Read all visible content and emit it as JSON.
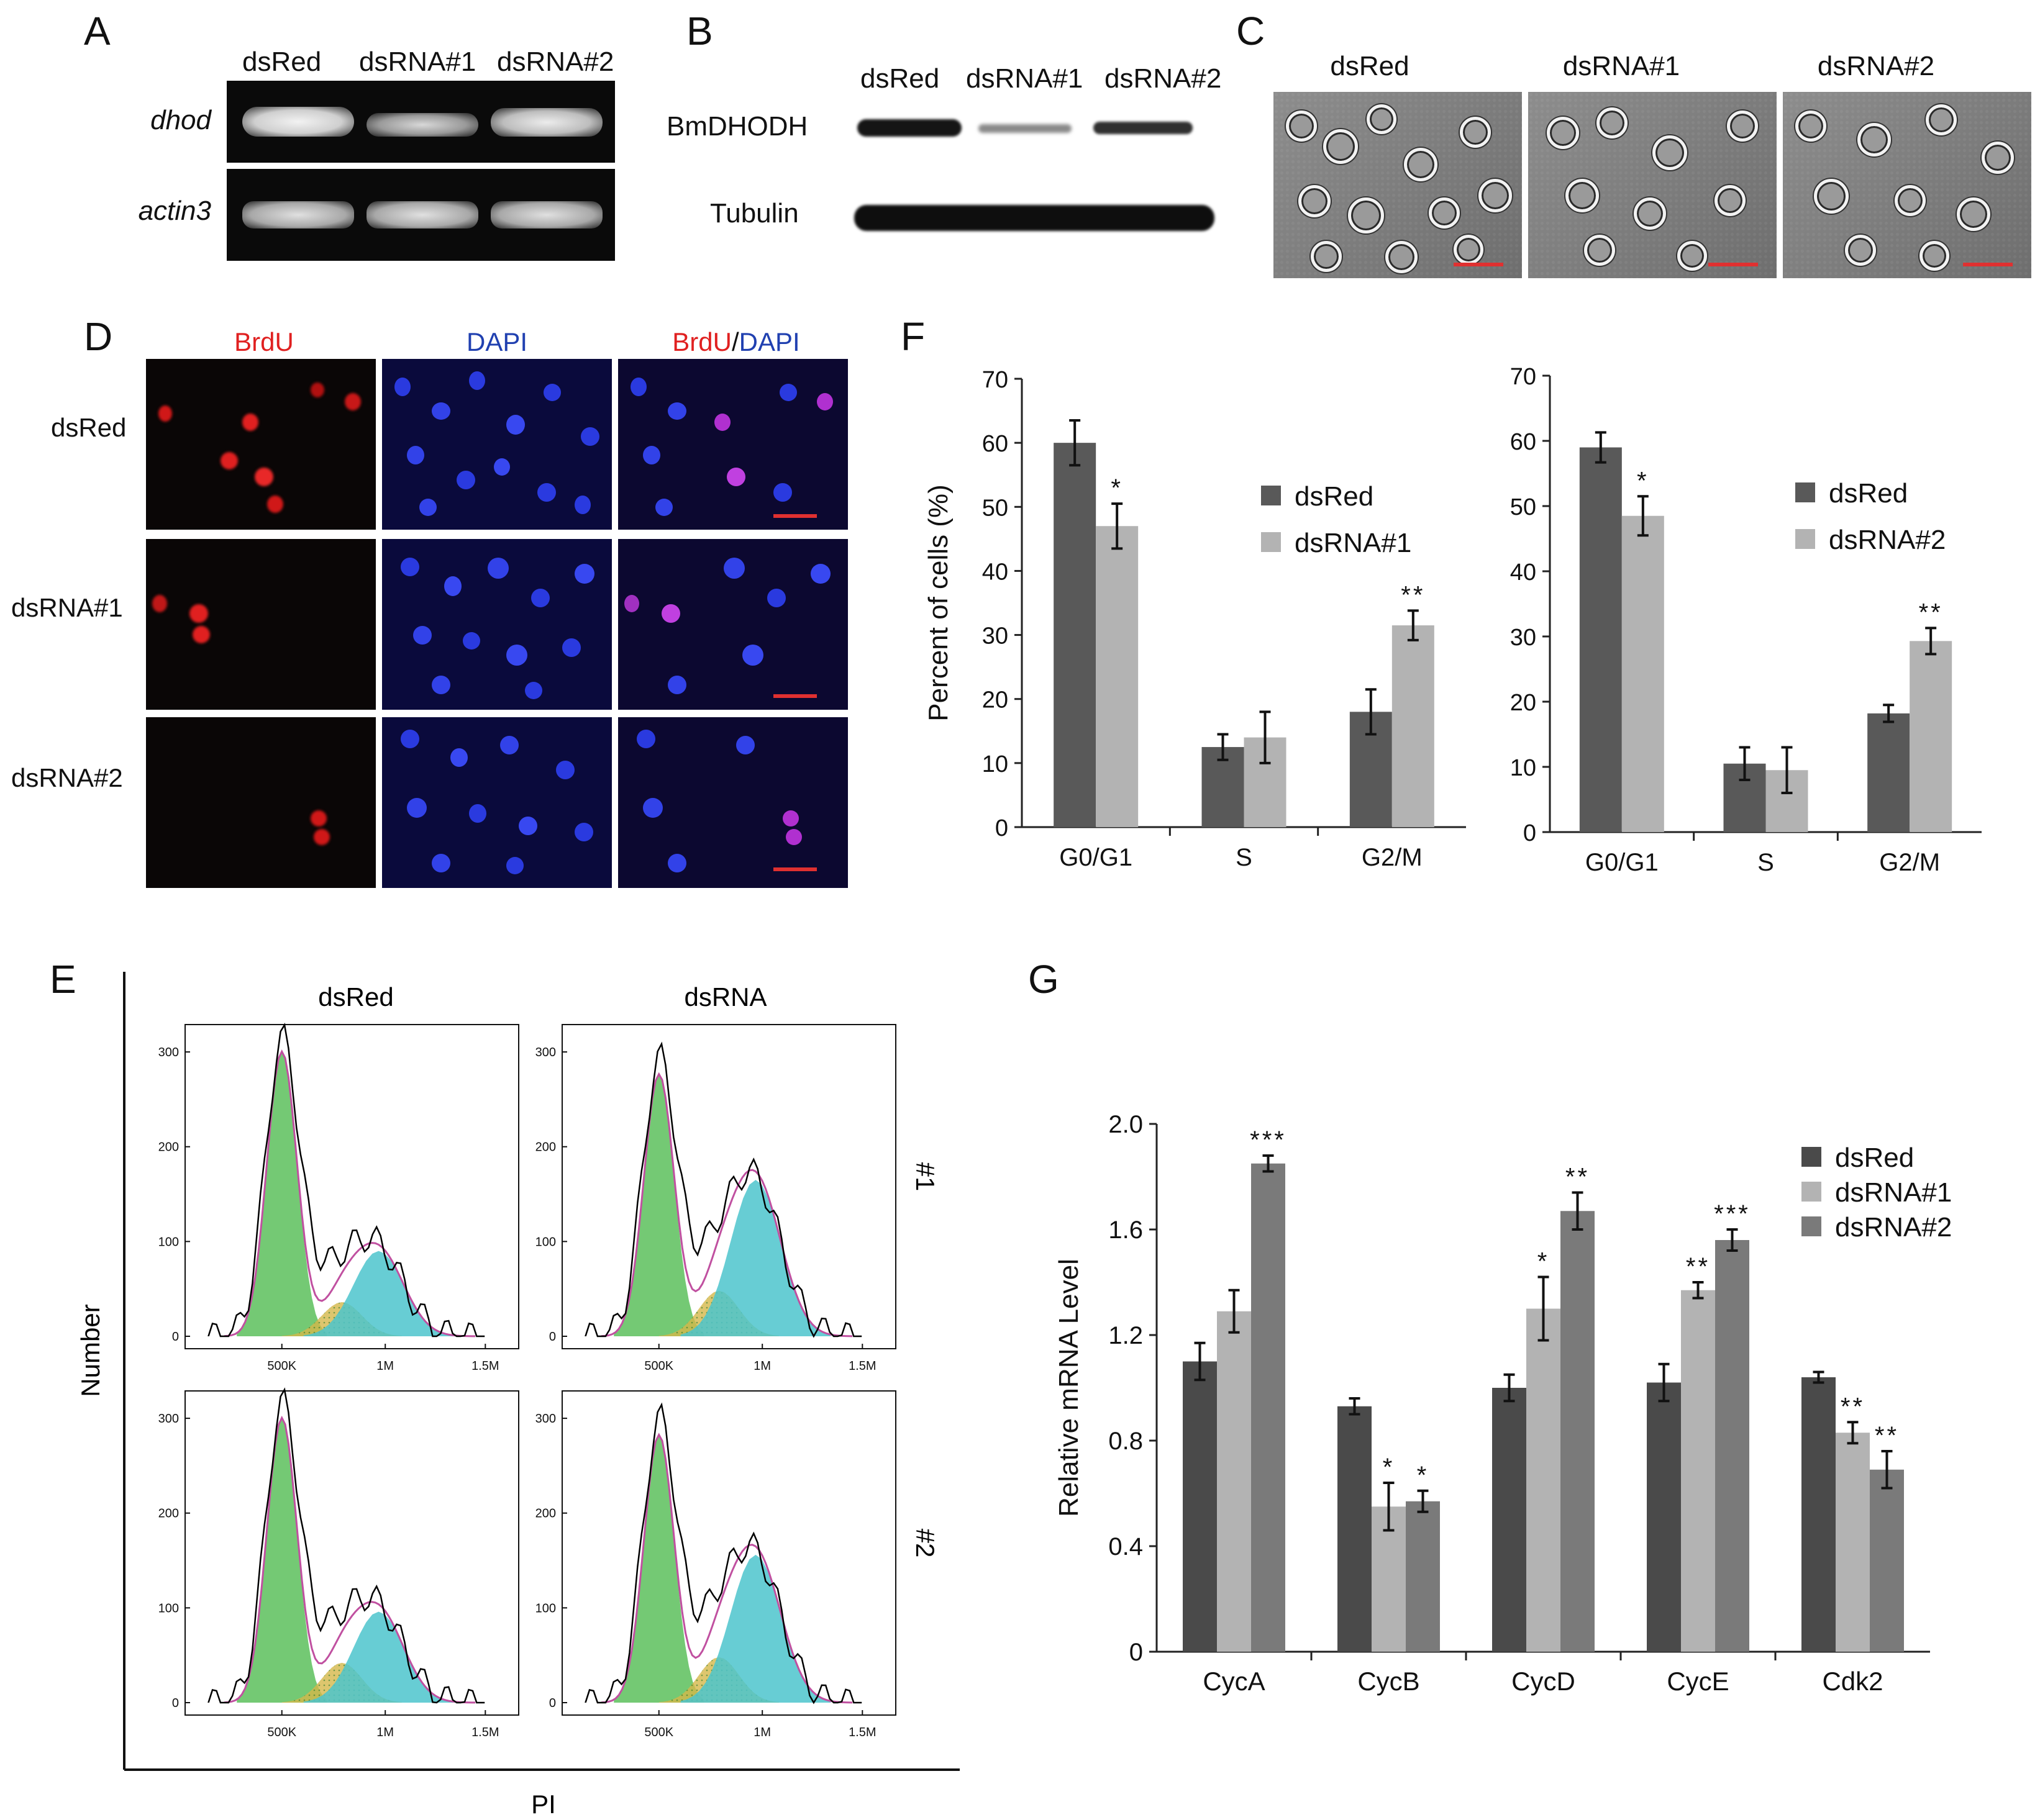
{
  "panels": {
    "A": "A",
    "B": "B",
    "C": "C",
    "D": "D",
    "E": "E",
    "F": "F",
    "G": "G"
  },
  "panelA": {
    "columns": [
      "dsRed",
      "dsRNA#1",
      "dsRNA#2"
    ],
    "rows": [
      "dhod",
      "actin3"
    ]
  },
  "panelB": {
    "columns": [
      "dsRed",
      "dsRNA#1",
      "dsRNA#2"
    ],
    "rows": [
      "BmDHODH",
      "Tubulin"
    ]
  },
  "panelC": {
    "columns": [
      "dsRed",
      "dsRNA#1",
      "dsRNA#2"
    ]
  },
  "panelD": {
    "columns": {
      "brdu": "BrdU",
      "dapi": "DAPI",
      "merge_brdu": "BrdU",
      "merge_sep": "/",
      "merge_dapi": "DAPI"
    },
    "rows": [
      "dsRed",
      "dsRNA#1",
      "dsRNA#2"
    ],
    "colors": {
      "brdu": "#e02020",
      "dapi": "#2040b0"
    }
  },
  "panelE": {
    "columns": [
      "dsRed",
      "dsRNA"
    ],
    "rows": [
      "#1",
      "#2"
    ],
    "ylabel": "Number",
    "xlabel": "PI",
    "yticks": [
      "300",
      "200",
      "100",
      "0"
    ],
    "xticks": [
      "500K",
      "1M",
      "1.5M"
    ],
    "colors": {
      "g1": "#5cbf5c",
      "s": "#d4b84a",
      "g2": "#4cc4cc",
      "fit": "#c050a0",
      "data": "#000000"
    }
  },
  "chart_data": [
    {
      "type": "bar",
      "title": "",
      "ylabel": "Percent of cells (%)",
      "xlabel": "",
      "ylim": [
        0,
        70
      ],
      "yticks": [
        "0",
        "10",
        "20",
        "30",
        "40",
        "50",
        "60",
        "70"
      ],
      "categories": [
        "G0/G1",
        "S",
        "G2/M"
      ],
      "series": [
        {
          "name": "dsRed",
          "values": [
            60,
            12.5,
            18
          ],
          "errors": [
            3.5,
            2,
            3.5
          ],
          "color": "#595959"
        },
        {
          "name": "dsRNA#1",
          "values": [
            47,
            14,
            31.5
          ],
          "errors": [
            3.5,
            4,
            2.3
          ],
          "color": "#b3b3b3"
        }
      ],
      "significance": [
        "*",
        "",
        "**"
      ],
      "legend_position": "top-right"
    },
    {
      "type": "bar",
      "title": "",
      "ylabel": "",
      "xlabel": "",
      "ylim": [
        0,
        70
      ],
      "yticks": [
        "0",
        "10",
        "20",
        "30",
        "40",
        "50",
        "60",
        "70"
      ],
      "categories": [
        "G0/G1",
        "S",
        "G2/M"
      ],
      "series": [
        {
          "name": "dsRed",
          "values": [
            59,
            10.5,
            18.2
          ],
          "errors": [
            2.3,
            2.5,
            1.3
          ],
          "color": "#595959"
        },
        {
          "name": "dsRNA#2",
          "values": [
            48.5,
            9.5,
            29.3
          ],
          "errors": [
            3,
            3.5,
            2
          ],
          "color": "#b3b3b3"
        }
      ],
      "significance": [
        "*",
        "",
        "**"
      ],
      "legend_position": "top-right"
    },
    {
      "type": "bar",
      "title": "",
      "ylabel": "Relative mRNA Level",
      "xlabel": "",
      "ylim": [
        0,
        2.0
      ],
      "yticks": [
        "0",
        "0.4",
        "0.8",
        "1.2",
        "1.6",
        "2.0"
      ],
      "categories": [
        "CycA",
        "CycB",
        "CycD",
        "CycE",
        "Cdk2"
      ],
      "series": [
        {
          "name": "dsRed",
          "values": [
            1.1,
            0.93,
            1.0,
            1.02,
            1.04
          ],
          "errors": [
            0.07,
            0.03,
            0.05,
            0.07,
            0.02
          ],
          "color": "#4a4a4a"
        },
        {
          "name": "dsRNA#1",
          "values": [
            1.29,
            0.55,
            1.3,
            1.37,
            0.83
          ],
          "errors": [
            0.08,
            0.09,
            0.12,
            0.03,
            0.04
          ],
          "color": "#b3b3b3"
        },
        {
          "name": "dsRNA#2",
          "values": [
            1.85,
            0.57,
            1.67,
            1.56,
            0.69
          ],
          "errors": [
            0.03,
            0.04,
            0.07,
            0.04,
            0.07
          ],
          "color": "#7a7a7a"
        }
      ],
      "significance": [
        [
          "",
          "",
          "***"
        ],
        [
          "",
          "*",
          "*"
        ],
        [
          "",
          "*",
          "**"
        ],
        [
          "",
          "**",
          "***"
        ],
        [
          "",
          "**",
          "**"
        ]
      ],
      "legend_position": "top-right"
    }
  ]
}
